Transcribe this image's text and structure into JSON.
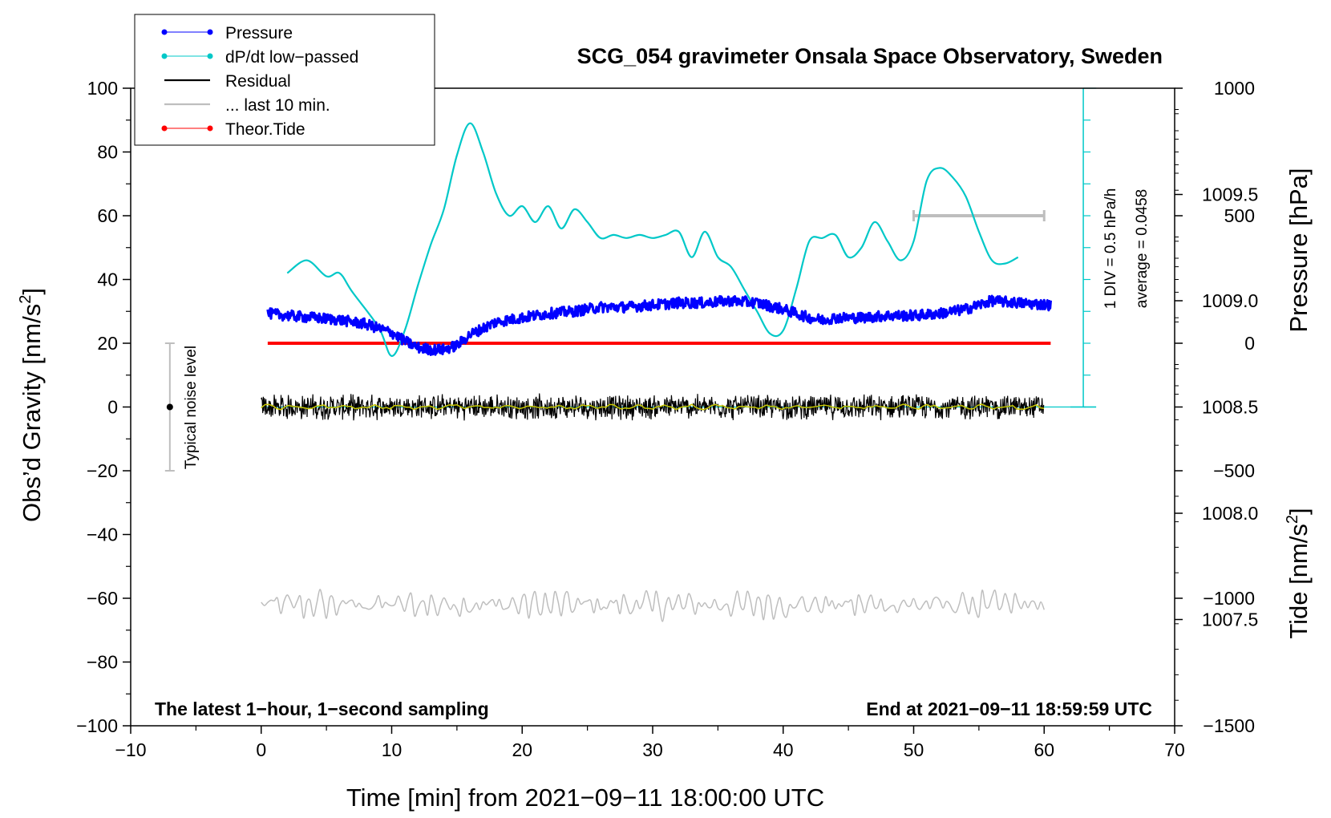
{
  "chart_data": {
    "type": "line",
    "title": "SCG_054 gravimeter Onsala Space Observatory, Sweden",
    "xlabel": "Time [min] from 2021−09−11 18:00:00 UTC",
    "ylabel_main": "Obs’d Gravity [nm/s",
    "ylabel_main_sup": "2",
    "ylabel_main_end": "]",
    "ylabel_pressure": "Pressure [hPa]",
    "ylabel_tide": "Tide [nm/s",
    "ylabel_tide_sup": "2",
    "ylabel_tide_end": "]",
    "xlim": [
      -10,
      70
    ],
    "ylim": [
      -100,
      100
    ],
    "pressure_lim": [
      1007.0,
      1010.0
    ],
    "tide_lim": [
      -1500,
      1000
    ],
    "x_ticks": [
      {
        "v": -10,
        "label": "−10"
      },
      {
        "v": 0,
        "label": "0"
      },
      {
        "v": 10,
        "label": "10"
      },
      {
        "v": 20,
        "label": "20"
      },
      {
        "v": 30,
        "label": "30"
      },
      {
        "v": 40,
        "label": "40"
      },
      {
        "v": 50,
        "label": "50"
      },
      {
        "v": 60,
        "label": "60"
      },
      {
        "v": 70,
        "label": "70"
      }
    ],
    "y_ticks": [
      {
        "v": 100,
        "label": "100"
      },
      {
        "v": 80,
        "label": "80"
      },
      {
        "v": 60,
        "label": "60"
      },
      {
        "v": 40,
        "label": "40"
      },
      {
        "v": 20,
        "label": "20"
      },
      {
        "v": 0,
        "label": "0"
      },
      {
        "v": -20,
        "label": "−20"
      },
      {
        "v": -40,
        "label": "−40"
      },
      {
        "v": -60,
        "label": "−60"
      },
      {
        "v": -80,
        "label": "−80"
      },
      {
        "v": -100,
        "label": "−100"
      }
    ],
    "pressure_ticks": [
      {
        "v": 1009.5,
        "label": "1009.5"
      },
      {
        "v": 1009.0,
        "label": "1009.0"
      },
      {
        "v": 1008.5,
        "label": "1008.5"
      },
      {
        "v": 1008.0,
        "label": "1008.0"
      },
      {
        "v": 1007.5,
        "label": "1007.5"
      }
    ],
    "tide_ticks": [
      {
        "v": 1000,
        "label": "1000"
      },
      {
        "v": 500,
        "label": "500"
      },
      {
        "v": 0,
        "label": "0"
      },
      {
        "v": -500,
        "label": "−500"
      },
      {
        "v": -1000,
        "label": "−1000"
      },
      {
        "v": -1500,
        "label": "−1500"
      }
    ],
    "legend": [
      {
        "label": "Pressure",
        "color": "#0000ff",
        "marker": true
      },
      {
        "label": "dP/dt low−passed",
        "color": "#00c8c8",
        "marker": true
      },
      {
        "label": "Residual",
        "color": "#000000",
        "marker": false
      },
      {
        "label": "... last 10 min.",
        "color": "#bebebe",
        "marker": false
      },
      {
        "label": "Theor.Tide",
        "color": "#ff0000",
        "marker": true
      }
    ],
    "series": [
      {
        "name": "Pressure",
        "axis": "pressure",
        "color": "#0000ff",
        "x": [
          0.5,
          2,
          4,
          6,
          8,
          10,
          11,
          12,
          13,
          14,
          15,
          16,
          18,
          20,
          22,
          24,
          26,
          28,
          30,
          32,
          34,
          36,
          38,
          40,
          42,
          43,
          44,
          46,
          48,
          50,
          52,
          54,
          56,
          58,
          60.5
        ],
        "y": [
          1008.94,
          1008.93,
          1008.92,
          1008.91,
          1008.89,
          1008.85,
          1008.81,
          1008.78,
          1008.77,
          1008.77,
          1008.79,
          1008.84,
          1008.9,
          1008.92,
          1008.94,
          1008.95,
          1008.97,
          1008.97,
          1008.98,
          1008.99,
          1008.99,
          1009.0,
          1008.99,
          1008.96,
          1008.92,
          1008.91,
          1008.92,
          1008.92,
          1008.93,
          1008.93,
          1008.94,
          1008.96,
          1009.0,
          1008.99,
          1008.98
        ]
      },
      {
        "name": "dP/dt low−passed",
        "axis": "gravity",
        "color": "#00c8c8",
        "x": [
          2,
          3.5,
          5,
          6,
          7,
          9,
          10,
          11,
          12,
          13,
          14,
          15,
          16,
          17,
          18,
          19,
          20,
          21,
          22,
          23,
          24,
          25,
          26,
          27,
          28,
          29,
          30,
          31,
          32,
          33,
          34,
          35,
          36,
          37,
          38,
          39,
          40,
          41,
          42,
          43,
          44,
          45,
          46,
          47,
          48,
          49,
          50,
          51,
          52,
          53,
          54,
          55,
          56,
          57,
          58
        ],
        "y": [
          42,
          46,
          41,
          42,
          36,
          25,
          16,
          24,
          38,
          51,
          62,
          79,
          89,
          80,
          67,
          60,
          63,
          58,
          63,
          56,
          62,
          58,
          53,
          54,
          53,
          54,
          53,
          54,
          55,
          47,
          55,
          47,
          44,
          37,
          30,
          23,
          24,
          37,
          52,
          53,
          54,
          47,
          50,
          58,
          52,
          46,
          52,
          71,
          75,
          72,
          66,
          55,
          46,
          45,
          47
        ]
      },
      {
        "name": "Residual",
        "axis": "gravity",
        "color": "#000000",
        "x_range": [
          0,
          60
        ],
        "amplitude": 4
      },
      {
        "name": "... last 10 min.",
        "axis": "gravity",
        "color": "#bebebe",
        "x_range": [
          0,
          60
        ],
        "baseline": -62,
        "amplitude": 4,
        "bar": {
          "x": [
            50,
            60
          ],
          "tide": 500
        }
      },
      {
        "name": "Theor.Tide",
        "axis": "tide",
        "color": "#ff0000",
        "x": [
          0.5,
          60.5
        ],
        "y": [
          0,
          0
        ]
      }
    ],
    "pressure_average_line": 1008.5,
    "dpdt_scale_bar": {
      "x": 63,
      "from": 0,
      "to": 100,
      "divisions": 10
    },
    "dpdt_scale_text_1": "1 DIV = 0.5 hPa/h",
    "dpdt_scale_text_2": "average = 0.0458",
    "noise": {
      "x": -7,
      "center": 0,
      "lo": -20,
      "hi": 20,
      "label": "Typical noise level"
    },
    "footer_left": "The latest 1−hour, 1−second sampling",
    "footer_right": "End at 2021−09−11 18:59:59 UTC"
  }
}
